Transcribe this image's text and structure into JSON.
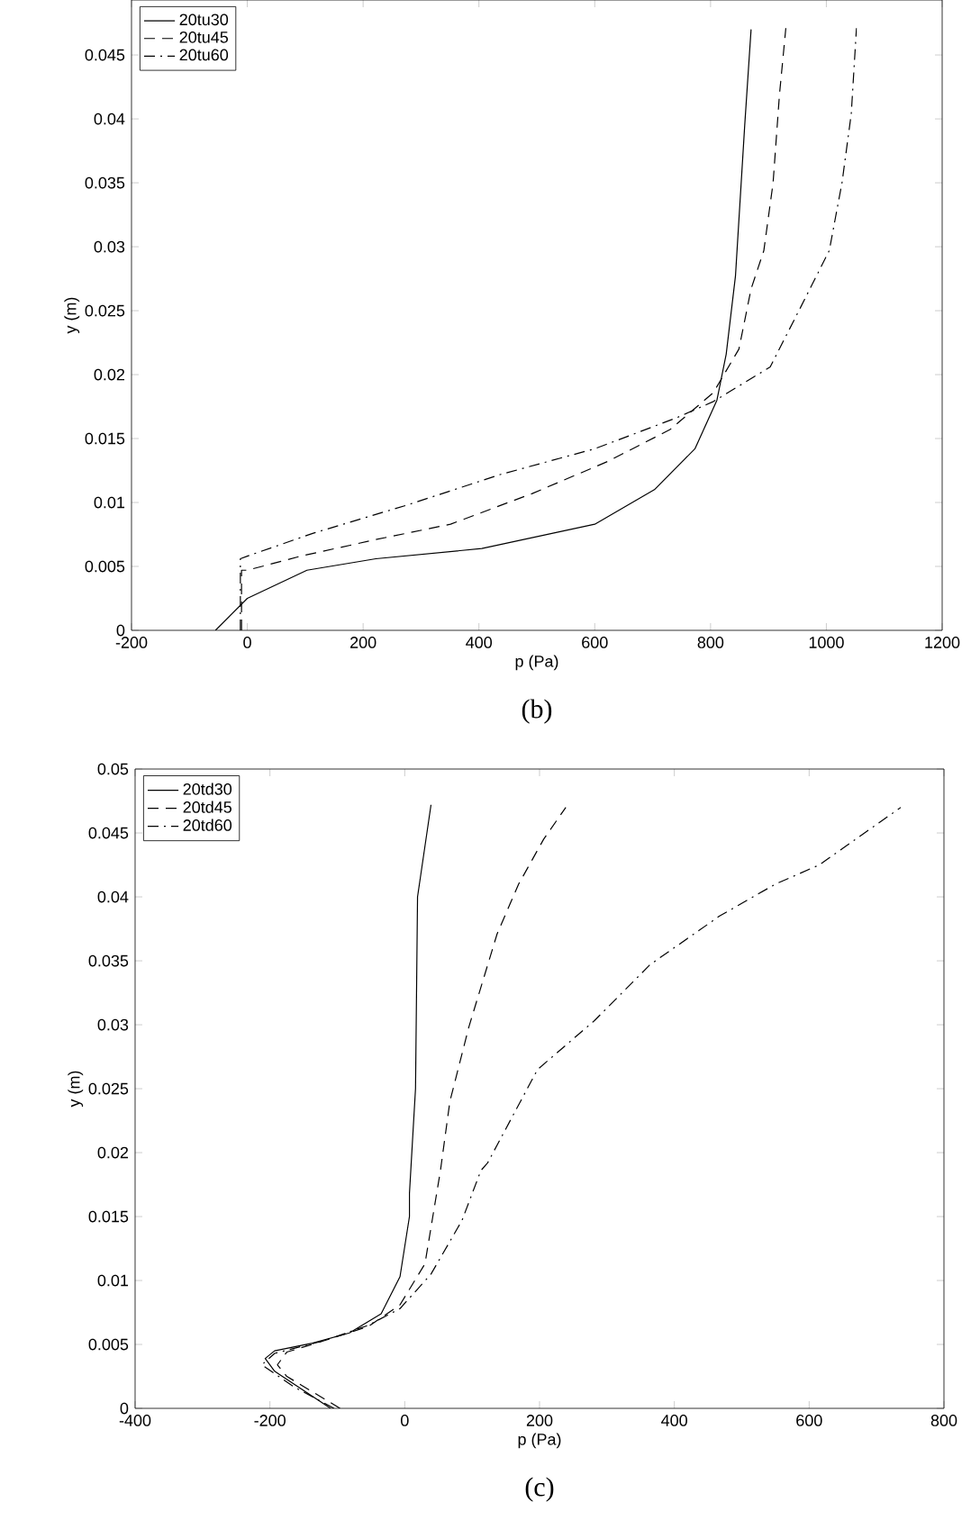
{
  "chart_data": [
    {
      "type": "line",
      "xlabel": "p (Pa)",
      "ylabel": "y (m)",
      "annotations": [
        "(b)"
      ],
      "legend": "top left",
      "xlim": [
        -200,
        1200
      ],
      "xticks": [
        -200,
        0,
        200,
        400,
        600,
        800,
        1000,
        1200
      ],
      "ylim": [
        0,
        0.0493
      ],
      "yticks": [
        0,
        0.005,
        0.01,
        0.015,
        0.02,
        0.025,
        0.03,
        0.035,
        0.04,
        0.045
      ],
      "series": [
        {
          "name": "20tu30",
          "color": "#000000",
          "line_style": "solid",
          "x": [
            -55,
            0,
            103,
            222,
            405,
            600,
            703,
            773,
            811,
            827,
            843,
            859,
            870
          ],
          "values": [
            0,
            0.0025,
            0.0047,
            0.0056,
            0.0064,
            0.0083,
            0.011,
            0.0142,
            0.018,
            0.0216,
            0.0277,
            0.0395,
            0.047
          ]
        },
        {
          "name": "20tu45",
          "color": "#000000",
          "line_style": "dashed",
          "x": [
            -10,
            -10,
            0,
            92,
            222,
            351,
            492,
            622,
            730,
            805,
            849,
            870,
            892,
            908,
            919,
            930
          ],
          "values": [
            0,
            0.0047,
            0.0047,
            0.0058,
            0.0071,
            0.0083,
            0.0107,
            0.0132,
            0.0157,
            0.0186,
            0.022,
            0.0267,
            0.0297,
            0.035,
            0.0419,
            0.0471
          ]
        },
        {
          "name": "20tu60",
          "color": "#000000",
          "line_style": "dashdot",
          "x": [
            -12,
            -12,
            0,
            114,
            276,
            438,
            600,
            740,
            805,
            903,
            957,
            1005,
            1027,
            1043,
            1052
          ],
          "values": [
            0,
            0.0056,
            0.0058,
            0.0076,
            0.0098,
            0.0122,
            0.0142,
            0.0166,
            0.0179,
            0.0206,
            0.0254,
            0.0297,
            0.035,
            0.0404,
            0.0471
          ]
        }
      ]
    },
    {
      "type": "line",
      "xlabel": "p (Pa)",
      "ylabel": "y (m)",
      "annotations": [
        "(c)"
      ],
      "legend": "top left",
      "xlim": [
        -400,
        800
      ],
      "xticks": [
        -400,
        -200,
        0,
        200,
        400,
        600,
        800
      ],
      "ylim": [
        0,
        0.05
      ],
      "yticks": [
        0,
        0.005,
        0.01,
        0.015,
        0.02,
        0.025,
        0.03,
        0.035,
        0.04,
        0.045,
        0.05
      ],
      "series": [
        {
          "name": "20td30",
          "color": "#000000",
          "line_style": "solid",
          "x": [
            -110,
            -193,
            -207,
            -193,
            -137,
            -82,
            -35,
            -7,
            7,
            7,
            16,
            19,
            39
          ],
          "values": [
            0,
            0.0029,
            0.0039,
            0.0045,
            0.0051,
            0.0059,
            0.0074,
            0.0103,
            0.015,
            0.0168,
            0.025,
            0.04,
            0.0472
          ]
        },
        {
          "name": "20td45",
          "color": "#000000",
          "line_style": "dashed",
          "x": [
            -96,
            -175,
            -189,
            -175,
            -119,
            -54,
            -7,
            30,
            53,
            67,
            95,
            137,
            169,
            206,
            239
          ],
          "values": [
            0,
            0.0025,
            0.0034,
            0.0044,
            0.0053,
            0.0064,
            0.0081,
            0.0113,
            0.0186,
            0.024,
            0.0298,
            0.0371,
            0.041,
            0.0445,
            0.047
          ]
        },
        {
          "name": "20td60",
          "color": "#000000",
          "line_style": "dashdot",
          "x": [
            -105,
            -165,
            -212,
            -193,
            -119,
            -54,
            -7,
            39,
            85,
            113,
            123,
            197,
            281,
            364,
            467,
            550,
            615,
            736
          ],
          "values": [
            0,
            0.0017,
            0.0034,
            0.0043,
            0.0053,
            0.0065,
            0.0078,
            0.0105,
            0.0147,
            0.0186,
            0.0192,
            0.0265,
            0.0303,
            0.0347,
            0.0385,
            0.041,
            0.0425,
            0.047
          ]
        }
      ]
    }
  ]
}
